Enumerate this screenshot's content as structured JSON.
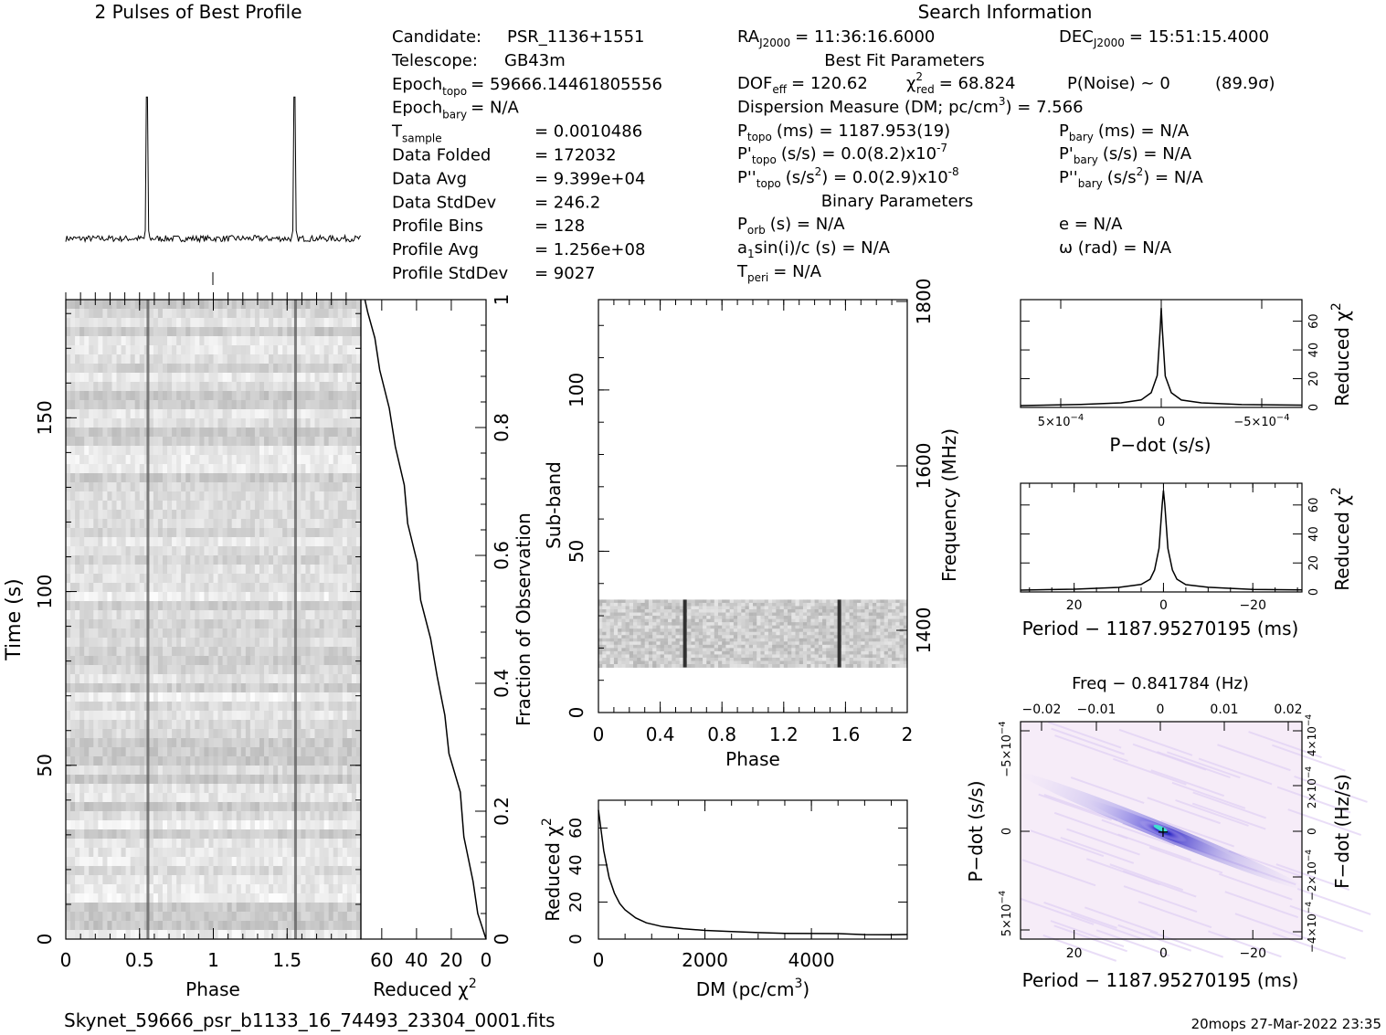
{
  "header": {
    "profile_title": "2 Pulses of Best Profile",
    "search_title": "Search Information"
  },
  "info": {
    "col1": [
      {
        "label": "Candidate:",
        "value": "PSR_1136+1551"
      },
      {
        "label": "Telescope:",
        "value": "GB43m"
      },
      {
        "label": "Epoch",
        "sub": "topo",
        "value": "= 59666.14461805556"
      },
      {
        "label": "Epoch",
        "sub": "bary",
        "value": "= N/A"
      },
      {
        "label": "T",
        "sub": "sample",
        "value": "=   0.0010486"
      },
      {
        "label": "Data Folded",
        "value": "=   172032"
      },
      {
        "label": "Data Avg",
        "value": "=   9.399e+04"
      },
      {
        "label": "Data StdDev",
        "value": "=   246.2"
      },
      {
        "label": "Profile Bins",
        "value": "=   128"
      },
      {
        "label": "Profile Avg",
        "value": "=   1.256e+08"
      },
      {
        "label": "Profile StdDev",
        "value": "=   9027"
      }
    ],
    "ra": "RA",
    "ra_sub": "J2000",
    "ra_value": "= 11:36:16.6000",
    "dec": "DEC",
    "dec_sub": "J2000",
    "dec_value": "= 15:51:15.4000",
    "best_fit_title": "Best Fit Parameters",
    "dof": "DOF",
    "dof_sub": "eff",
    "dof_value": "= 120.62",
    "chi": "χ",
    "chi_sup": "2",
    "chi_sub": "red",
    "chi_value": "= 68.824",
    "pnoise": "P(Noise) ~ 0",
    "sigma": "(89.9σ)",
    "dm_line": "Dispersion Measure (DM; pc/cm",
    "dm_sup": "3",
    "dm_value": ") = 7.566",
    "ptopo": "P",
    "ptopo_sub": "topo",
    "ptopo_value": "(ms) =  1187.953(19)",
    "pdtopo": "P'",
    "pdtopo_sub": "topo",
    "pdtopo_value": "(s/s) = 0.0(8.2)x10",
    "pdtopo_exp": "-7",
    "pddtopo": "P''",
    "pddtopo_sub": "topo",
    "pddtopo_value": "(s/s",
    "pddtopo_sup2": "2",
    "pddtopo_value2": ") = 0.0(2.9)x10",
    "pddtopo_exp": "-8",
    "pbary": "P",
    "pbary_sub": "bary",
    "pbary_value": "(ms) = N/A",
    "pdbary": "P'",
    "pdbary_sub": "bary",
    "pdbary_value": "(s/s) = N/A",
    "pddbary": "P''",
    "pddbary_sub": "bary",
    "pddbary_value": "(s/s",
    "pddbary_sup2": "2",
    "pddbary_value2": ") = N/A",
    "binary_title": "Binary Parameters",
    "porb": "P",
    "porb_sub": "orb",
    "porb_value": "(s) = N/A",
    "a1": "a",
    "a1_sub": "1",
    "a1_value": "sin(i)/c (s) = N/A",
    "tperi": "T",
    "tperi_sub": "peri",
    "tperi_value": "= N/A",
    "ecc": "e = N/A",
    "omega": "ω (rad) = N/A"
  },
  "footer": {
    "filename": "Skynet_59666_psr_b1133_16_74493_23304_0001.fits",
    "stamp": "20mops 27-Mar-2022 23:35"
  },
  "chart_data": [
    {
      "id": "profile",
      "type": "line",
      "title": "2 Pulses of Best Profile",
      "xlim": [
        0,
        2
      ],
      "pulse_phase": [
        0.55,
        1.55
      ],
      "baseline": 0.03,
      "peak": 1.0
    },
    {
      "id": "time-phase",
      "type": "heatmap",
      "xlabel": "Phase",
      "ylabel": "Time (s)",
      "xticks": [
        "0",
        "0.5",
        "1",
        "1.5"
      ],
      "yticks": [
        "0",
        "50",
        "100",
        "150"
      ],
      "xlim": [
        0,
        2
      ],
      "ylim": [
        0,
        184
      ],
      "pulse_phase": [
        0.56,
        1.56
      ]
    },
    {
      "id": "chi-vs-fraction",
      "type": "line",
      "xlabel": "Reduced χ",
      "xlabel_sup": "2",
      "ylabel": "Fraction of Observation",
      "xticks": [
        "60",
        "40",
        "20",
        "0"
      ],
      "yticks": [
        "0",
        "0.2",
        "0.4",
        "0.6",
        "0.8",
        "1"
      ],
      "xlim": [
        72,
        0
      ],
      "ylim": [
        0,
        1
      ],
      "x": [
        0,
        4,
        8,
        12,
        16,
        20,
        24,
        28,
        32,
        36,
        40,
        44,
        48,
        52,
        56,
        60,
        64,
        68,
        70
      ],
      "y": [
        0,
        0.04,
        0.09,
        0.16,
        0.23,
        0.29,
        0.35,
        0.41,
        0.47,
        0.53,
        0.59,
        0.65,
        0.71,
        0.77,
        0.83,
        0.89,
        0.94,
        0.98,
        1.0
      ]
    },
    {
      "id": "subband-phase",
      "type": "heatmap",
      "xlabel": "Phase",
      "ylabel": "Sub-band",
      "ylabel_right": "Frequency (MHz)",
      "xticks": [
        "0",
        "0.4",
        "0.8",
        "1.2",
        "1.6",
        "2"
      ],
      "yticks": [
        "0",
        "50",
        "100"
      ],
      "yticks_right": [
        "1400",
        "1600",
        "1800"
      ],
      "xlim": [
        0,
        2
      ],
      "ylim": [
        0,
        128
      ],
      "band_range": [
        14,
        35
      ],
      "pulse_phase": [
        0.56,
        1.56
      ]
    },
    {
      "id": "dm-curve",
      "type": "line",
      "xlabel": "DM (pc/cm",
      "xlabel_sup": "3",
      "xlabel_end": ")",
      "ylabel": "Reduced χ",
      "ylabel_sup": "2",
      "xticks": [
        "0",
        "2000",
        "4000"
      ],
      "yticks": [
        "0",
        "20",
        "40",
        "60"
      ],
      "xlim": [
        0,
        5800
      ],
      "ylim": [
        0,
        75
      ],
      "x": [
        0,
        100,
        200,
        300,
        400,
        500,
        700,
        900,
        1200,
        1600,
        2000,
        2500,
        3000,
        3500,
        4000,
        4500,
        5000,
        5500,
        5800
      ],
      "y": [
        70,
        48,
        33,
        25,
        19,
        15.5,
        11.5,
        9,
        7,
        5.6,
        4.7,
        4,
        3.5,
        3.2,
        3,
        2.8,
        2.7,
        2.6,
        2.5
      ]
    },
    {
      "id": "pdot-curve",
      "type": "line",
      "xlabel": "P−dot (s/s)",
      "ylabel": "Reduced χ",
      "ylabel_sup": "2",
      "xticks": [
        "5×10",
        "0",
        "−5×10"
      ],
      "xtick_exp": "−4",
      "yticks": [
        "0",
        "20",
        "40",
        "60"
      ],
      "xlim": [
        0.0007,
        -0.0007
      ],
      "ylim": [
        0,
        75
      ],
      "x": [
        0.0007,
        0.0004,
        0.0002,
        0.0001,
        5e-05,
        2e-05,
        5e-06,
        0,
        -5e-06,
        -2e-05,
        -5e-05,
        -0.0001,
        -0.0002,
        -0.0004,
        -0.0007
      ],
      "y": [
        1.5,
        2,
        3,
        5,
        10,
        22,
        55,
        69,
        55,
        22,
        10,
        5,
        3,
        2,
        1.5
      ]
    },
    {
      "id": "period-curve",
      "type": "line",
      "xlabel": "Period − 1187.95270195 (ms)",
      "ylabel": "Reduced χ",
      "ylabel_sup": "2",
      "xticks": [
        "20",
        "0",
        "−20"
      ],
      "yticks": [
        "0",
        "20",
        "40",
        "60"
      ],
      "xlim": [
        32,
        -31
      ],
      "ylim": [
        0,
        75
      ],
      "x": [
        32,
        20,
        10,
        5,
        3,
        2,
        1,
        0.3,
        0,
        -0.3,
        -1,
        -2,
        -3,
        -5,
        -10,
        -20,
        -31
      ],
      "y": [
        1.5,
        2,
        3,
        5,
        9,
        15,
        30,
        60,
        70,
        60,
        30,
        15,
        9,
        5,
        3,
        2,
        1.5
      ]
    },
    {
      "id": "period-pdot-map",
      "type": "heatmap",
      "top_label": "Freq − 0.841784 (Hz)",
      "xlabel": "Period − 1187.95270195 (ms)",
      "ylabel": "P−dot (s/s)",
      "ylabel_right": "F−dot (Hz/s)",
      "xticks": [
        "20",
        "0",
        "−20"
      ],
      "xticks_top": [
        "−0.02",
        "−0.01",
        "0",
        "0.01",
        "0.02"
      ],
      "yticks": [
        "5×10",
        "0",
        "−5×10"
      ],
      "ytick_exp": "−4",
      "yticks_right": [
        "−4×10",
        "−2×10",
        "0",
        "2×10",
        "4×10"
      ],
      "ytick_right_exp": "−4",
      "xlim": [
        32,
        -31
      ],
      "peak": [
        0,
        0
      ],
      "colors": {
        "low": "#f6ecf8",
        "mid": "#a8a0f0",
        "high": "#2a20c8",
        "peak": "#40e0d0"
      }
    }
  ]
}
